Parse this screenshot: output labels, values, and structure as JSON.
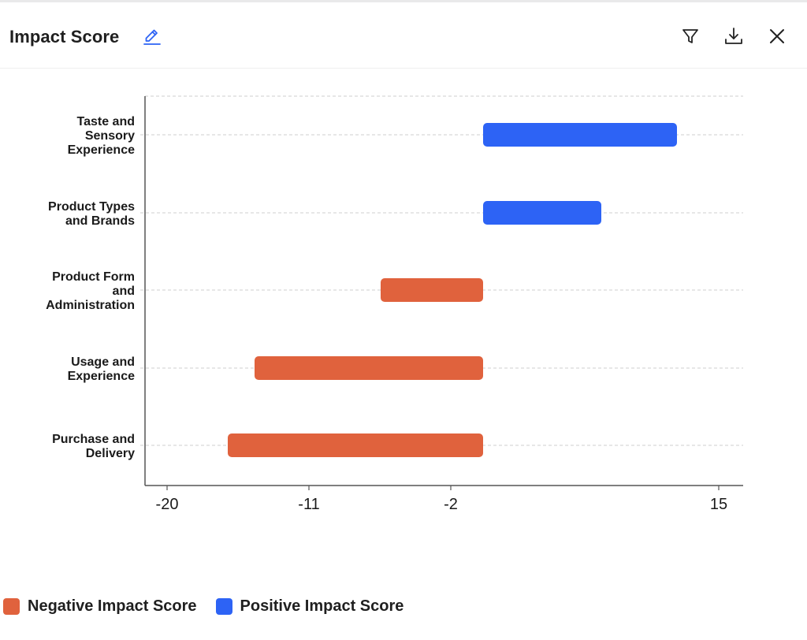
{
  "header": {
    "title": "Impact Score",
    "icons": {
      "edit": "pencil-icon",
      "filter": "filter-icon",
      "download": "download-icon",
      "close": "close-icon"
    }
  },
  "colors": {
    "negative": "#E0623D",
    "positive": "#2D63F5",
    "grid": "#cfcfcf",
    "axis": "#555555"
  },
  "legend": {
    "negative_label": "Negative Impact Score",
    "positive_label": "Positive Impact Score"
  },
  "chart_data": {
    "type": "bar",
    "orientation": "horizontal",
    "categories": [
      [
        "Taste and",
        "Sensory",
        "Experience"
      ],
      [
        "Product Types",
        "and Brands"
      ],
      [
        "Product Form",
        "and",
        "Administration"
      ],
      [
        "Usage and",
        "Experience"
      ],
      [
        "Purchase and",
        "Delivery"
      ]
    ],
    "series": [
      {
        "name": "Negative Impact Score",
        "values": [
          0,
          0,
          -6.5,
          -14.5,
          -16.2
        ]
      },
      {
        "name": "Positive Impact Score",
        "values": [
          12.3,
          7.5,
          0,
          0,
          0
        ]
      }
    ],
    "xticks": [
      -20,
      -11,
      -2,
      15
    ],
    "xlim": [
      -21.5,
      16.5
    ],
    "grid": true,
    "legend_position": "bottom-left"
  }
}
